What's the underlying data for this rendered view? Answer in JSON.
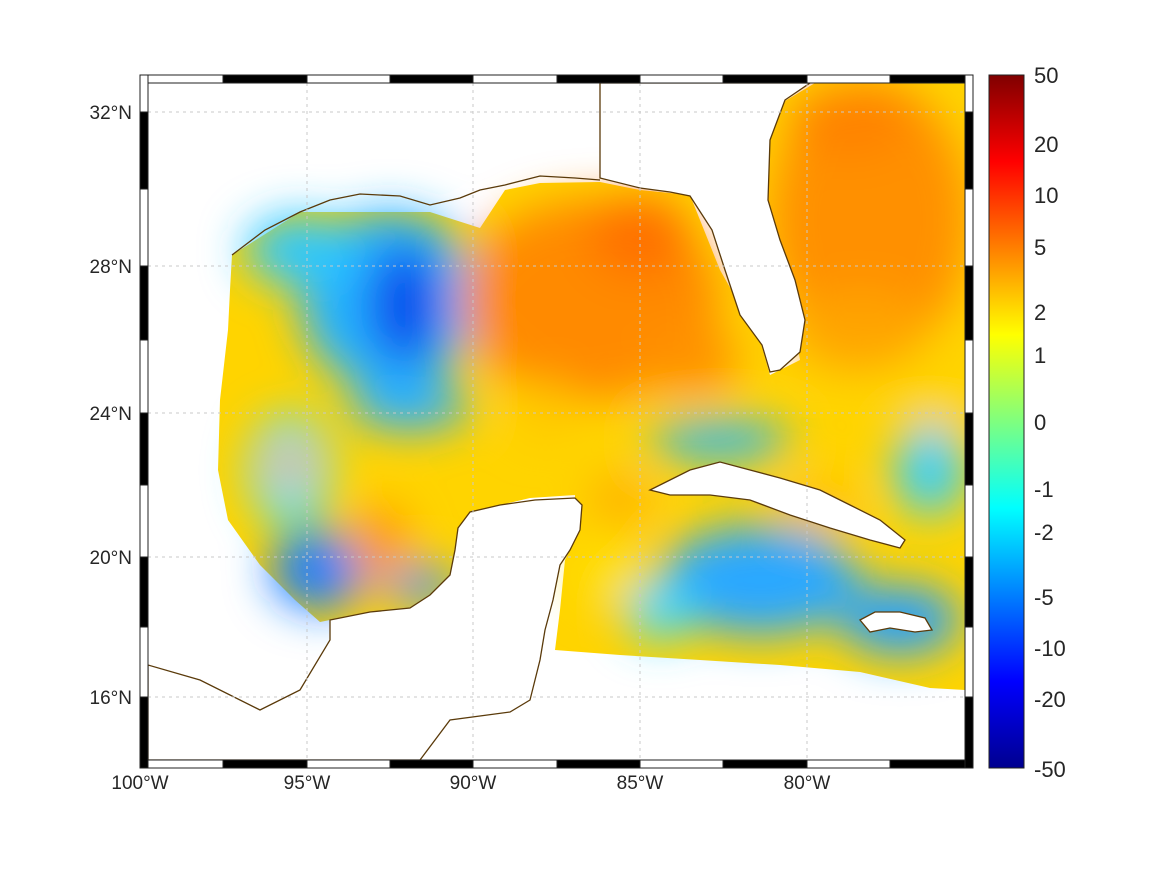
{
  "map": {
    "lat_labels": [
      "32°N",
      "28°N",
      "24°N",
      "20°N",
      "16°N"
    ],
    "lon_labels": [
      "100°W",
      "95°W",
      "90°W",
      "85°W",
      "80°W"
    ],
    "coast_color": "#5a3a0a",
    "grid": true
  },
  "colorbar": {
    "colormap": "jet",
    "labels": [
      "50",
      "20",
      "10",
      "5",
      "2",
      "1",
      "0",
      "-1",
      "-2",
      "-5",
      "-10",
      "-20",
      "-50"
    ]
  }
}
